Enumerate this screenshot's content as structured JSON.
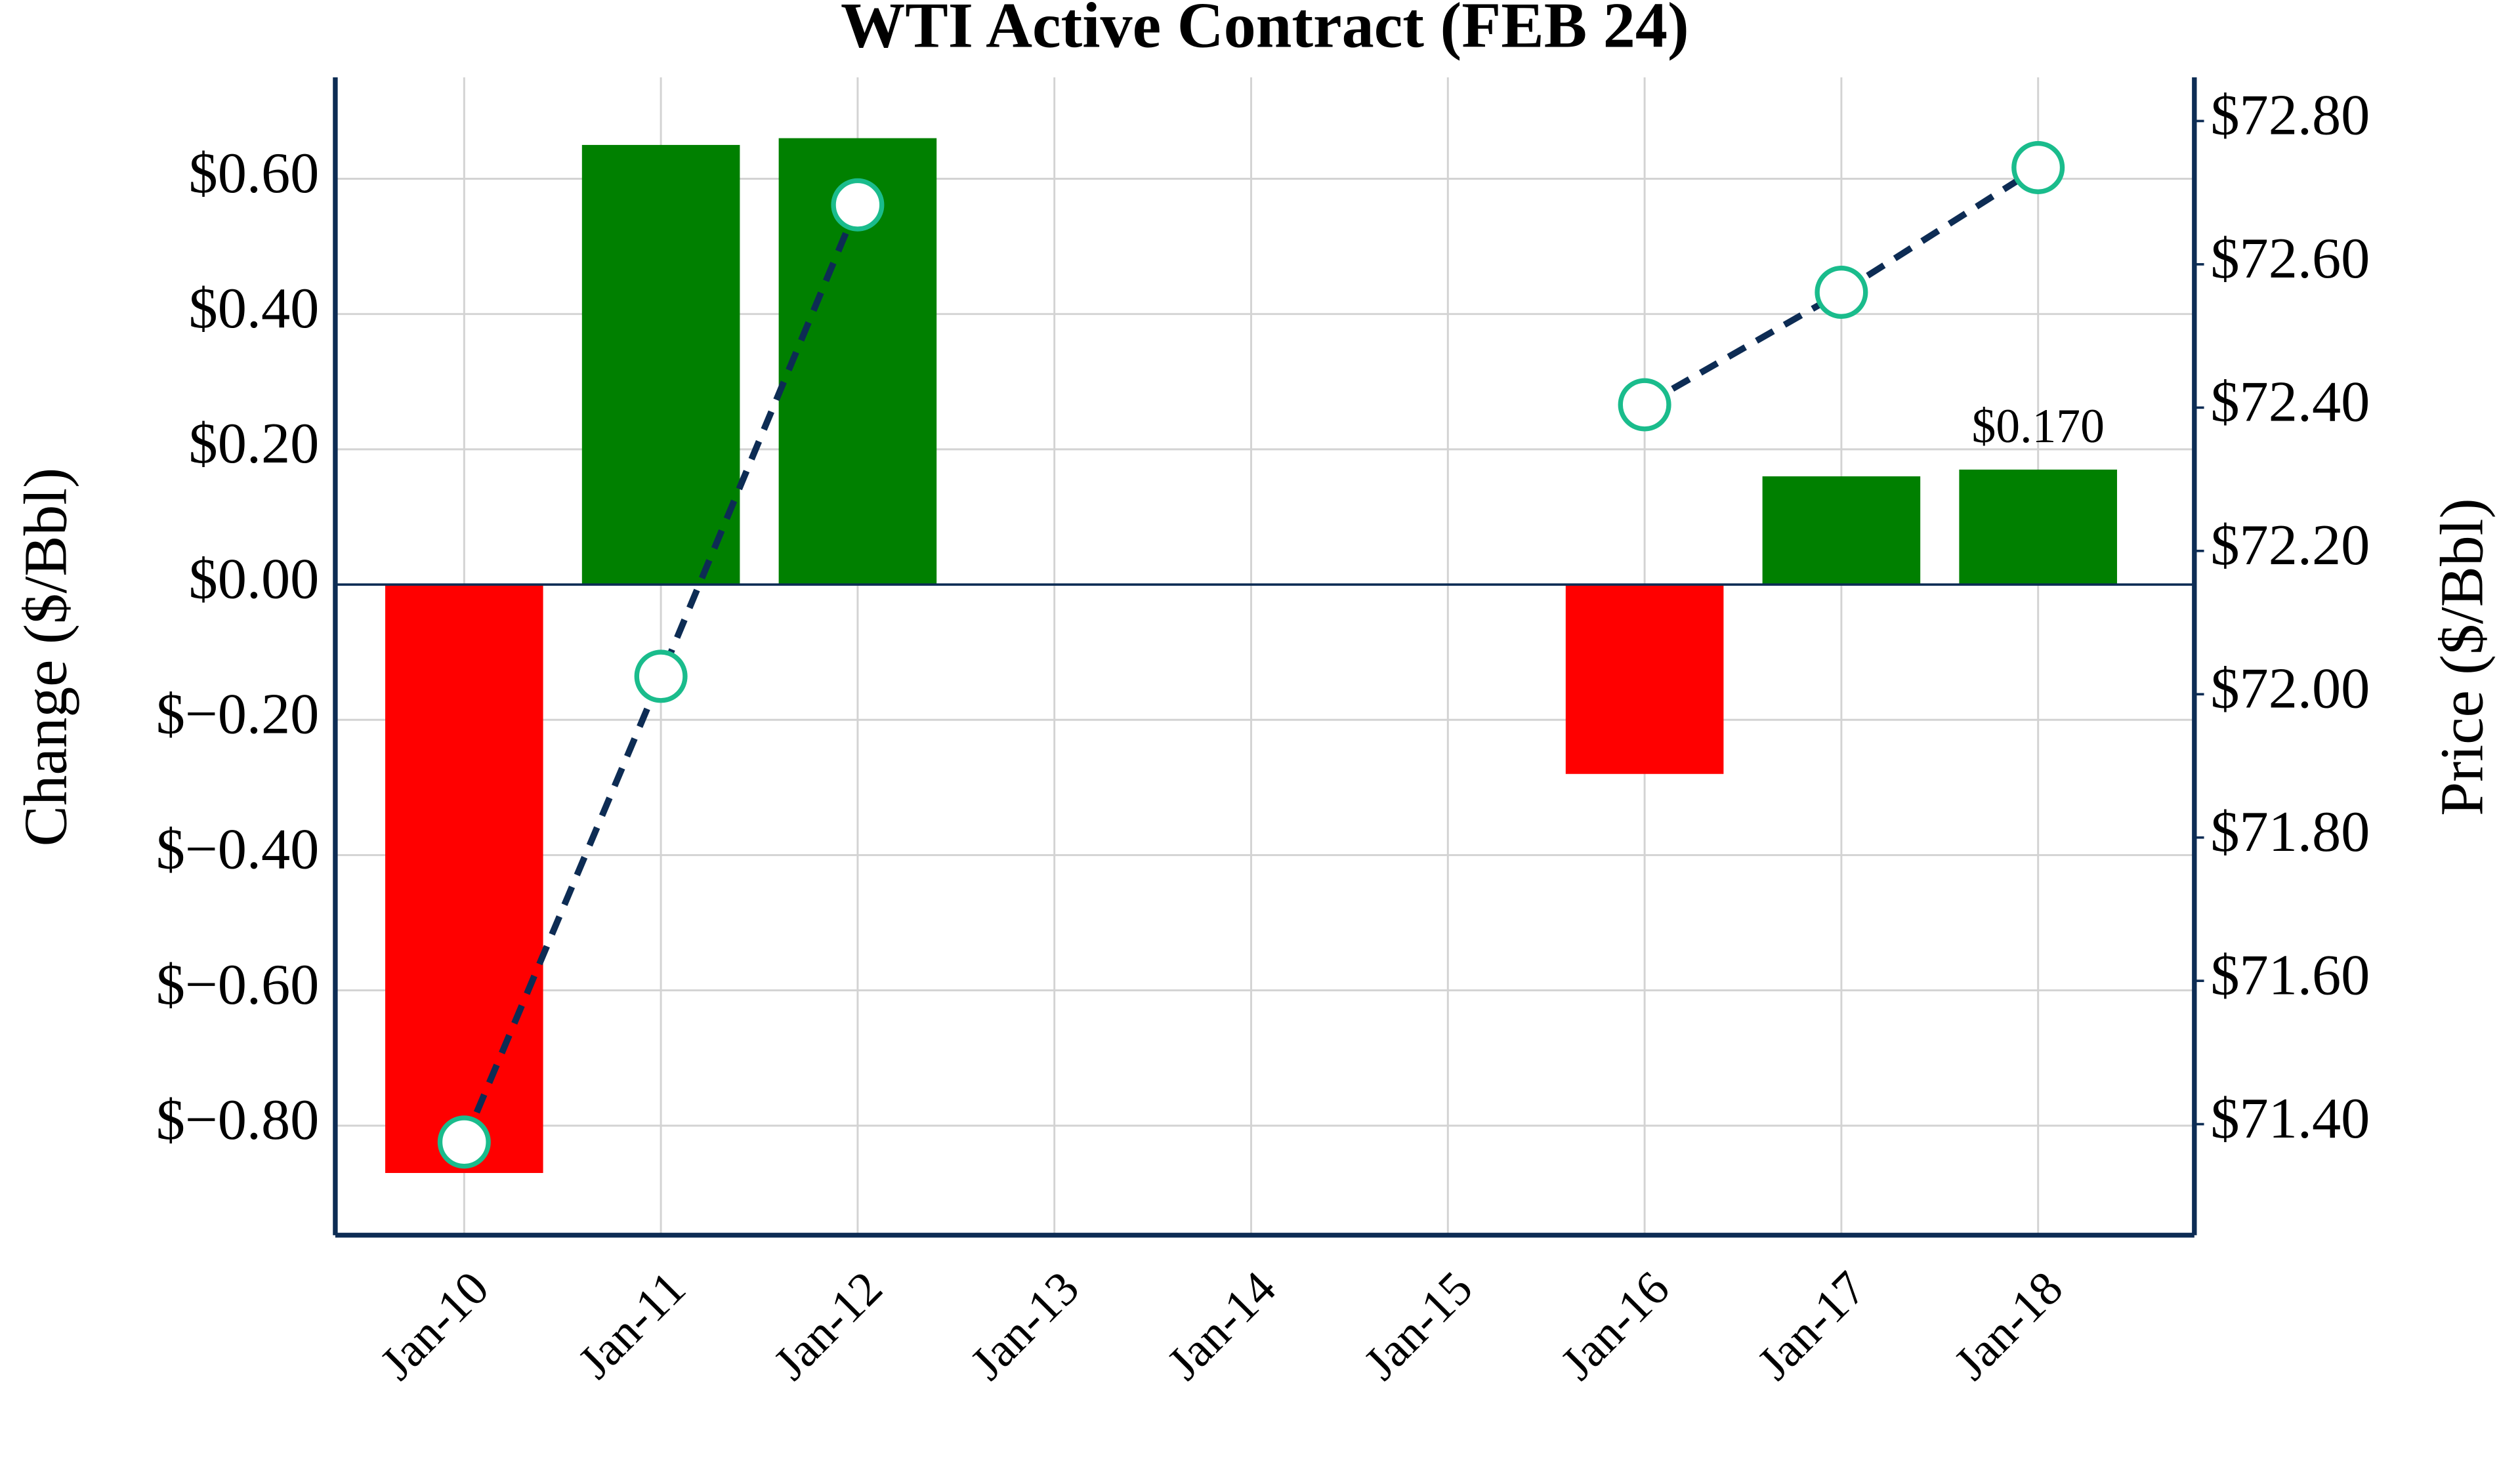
{
  "chart_data": {
    "type": "bar_line",
    "title": "WTI Active Contract (FEB 24)",
    "y_label": "Change ($/Bbl)",
    "y2_label": "Price ($/Bbl)",
    "categories": [
      "Jan-10",
      "Jan-11",
      "Jan-12",
      "Jan-13",
      "Jan-14",
      "Jan-15",
      "Jan-16",
      "Jan-17",
      "Jan-18"
    ],
    "series": [
      {
        "type": "bar",
        "values": [
          -0.87,
          0.65,
          0.66,
          null,
          null,
          null,
          -0.28,
          0.16,
          0.17
        ],
        "value_labels": [
          null,
          null,
          null,
          null,
          null,
          null,
          null,
          null,
          "$0.170"
        ],
        "colors": [
          "#ff0000",
          "#008000",
          "#008000",
          null,
          null,
          null,
          "#ff0000",
          "#008000",
          "#008000"
        ]
      },
      {
        "type": "line",
        "axis": "y2",
        "color": "#0d2c54",
        "marker_edge_color": "#1abc8c",
        "marker_face_color": "#ffffff",
        "values": [
          71.375,
          72.025,
          72.683,
          null,
          null,
          null,
          72.404,
          72.561,
          72.735
        ]
      }
    ],
    "ylim": [
      -0.962,
      0.75
    ],
    "yticks": [
      {
        "value": -0.8,
        "label": "$−0.80"
      },
      {
        "value": -0.6,
        "label": "$−0.60"
      },
      {
        "value": -0.4,
        "label": "$−0.40"
      },
      {
        "value": -0.2,
        "label": "$−0.20"
      },
      {
        "value": 0,
        "label": "$0.00"
      },
      {
        "value": 0.2,
        "label": "$0.20"
      },
      {
        "value": 0.4,
        "label": "$0.40"
      },
      {
        "value": 0.6,
        "label": "$0.60"
      }
    ],
    "y2lim": [
      71.245,
      72.861
    ],
    "y2ticks": [
      {
        "value": 71.4,
        "label": "$71.40"
      },
      {
        "value": 71.6,
        "label": "$71.60"
      },
      {
        "value": 71.8,
        "label": "$71.80"
      },
      {
        "value": 72.0,
        "label": "$72.00"
      },
      {
        "value": 72.2,
        "label": "$72.20"
      },
      {
        "value": 72.4,
        "label": "$72.40"
      },
      {
        "value": 72.6,
        "label": "$72.60"
      },
      {
        "value": 72.8,
        "label": "$72.80"
      }
    ],
    "grid": true
  }
}
